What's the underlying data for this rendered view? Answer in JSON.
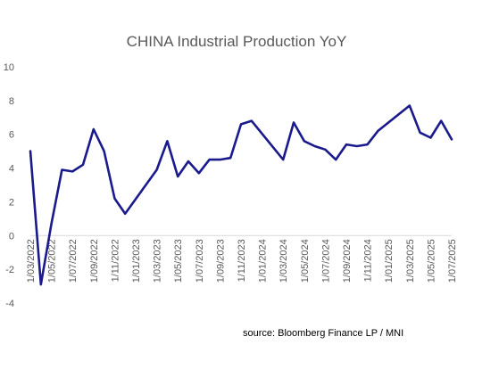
{
  "chart_data": {
    "type": "line",
    "title": "CHINA Industrial Production YoY",
    "xlabel": "",
    "ylabel": "",
    "ylim": [
      -4,
      10
    ],
    "y_ticks": [
      -4,
      -2,
      0,
      2,
      4,
      6,
      8,
      10
    ],
    "y_tick_labels": [
      "-4",
      "-2",
      "0",
      "2",
      "4",
      "6",
      "8",
      "10"
    ],
    "grid": false,
    "legend": "none",
    "line_color": "#1a1a8c",
    "x_tick_labels": [
      "1/03/2022",
      "1/05/2022",
      "1/07/2022",
      "1/09/2022",
      "1/11/2022",
      "1/01/2023",
      "1/03/2023",
      "1/05/2023",
      "1/07/2023",
      "1/09/2023",
      "1/11/2023",
      "1/01/2024",
      "1/03/2024",
      "1/05/2024",
      "1/07/2024",
      "1/09/2024",
      "1/11/2024",
      "1/01/2025",
      "1/03/2025",
      "1/05/2025",
      "1/07/2025"
    ],
    "x": [
      "2022-03",
      "2022-04",
      "2022-05",
      "2022-06",
      "2022-07",
      "2022-08",
      "2022-09",
      "2022-10",
      "2022-11",
      "2022-12",
      "2023-01",
      "2023-02",
      "2023-03",
      "2023-04",
      "2023-05",
      "2023-06",
      "2023-07",
      "2023-08",
      "2023-09",
      "2023-10",
      "2023-11",
      "2023-12",
      "2024-01",
      "2024-02",
      "2024-03",
      "2024-04",
      "2024-05",
      "2024-06",
      "2024-07",
      "2024-08",
      "2024-09",
      "2024-10",
      "2024-11",
      "2024-12",
      "2025-01",
      "2025-02",
      "2025-03",
      "2025-04",
      "2025-05",
      "2025-06",
      "2025-07"
    ],
    "series": [
      {
        "name": "",
        "values": [
          5.0,
          -2.9,
          0.7,
          3.9,
          3.8,
          4.2,
          6.3,
          5.0,
          2.2,
          1.3,
          null,
          null,
          3.9,
          5.6,
          3.5,
          4.4,
          3.7,
          4.5,
          4.5,
          4.6,
          6.6,
          6.8,
          null,
          null,
          4.5,
          6.7,
          5.6,
          5.3,
          5.1,
          4.5,
          5.4,
          5.3,
          5.4,
          6.2,
          null,
          null,
          7.7,
          6.1,
          5.8,
          6.8,
          5.7
        ]
      }
    ]
  },
  "source": "source: Bloomberg Finance LP / MNI"
}
